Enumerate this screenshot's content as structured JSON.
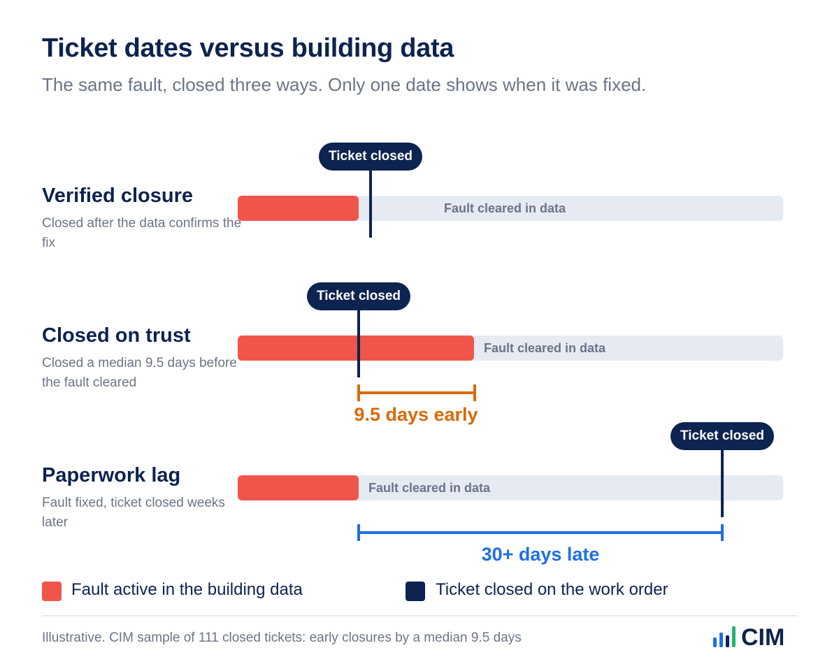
{
  "header": {
    "title": "Ticket dates versus building data",
    "subtitle": "The same fault, closed three ways. Only one date shows when it was fixed."
  },
  "rows": [
    {
      "title": "Verified closure",
      "desc": "Closed after the data confirms the fix",
      "cleared_label": "Fault cleared in data",
      "ticket_label": "Ticket closed"
    },
    {
      "title": "Closed on trust",
      "desc": "Closed a median 9.5 days before the fault cleared",
      "cleared_label": "Fault cleared in data",
      "ticket_label": "Ticket closed",
      "gap_label": "9.5 days early"
    },
    {
      "title": "Paperwork lag",
      "desc": "Fault fixed, ticket closed weeks later",
      "cleared_label": "Fault cleared in data",
      "ticket_label": "Ticket closed",
      "gap_label": "30+ days late"
    }
  ],
  "legend": {
    "fault": "Fault active in the building data",
    "ticket": "Ticket closed on the work order"
  },
  "footnote": "Illustrative. CIM sample of 111 closed tickets: early closures by a median 9.5 days",
  "logo": {
    "text": "CIM",
    "icon": "bar-chart-logo-icon"
  },
  "colors": {
    "fault": "#f0554c",
    "ticket": "#0d2350",
    "track": "#e6eaf3",
    "early": "#d96a0a",
    "late": "#1f6fe8"
  }
}
